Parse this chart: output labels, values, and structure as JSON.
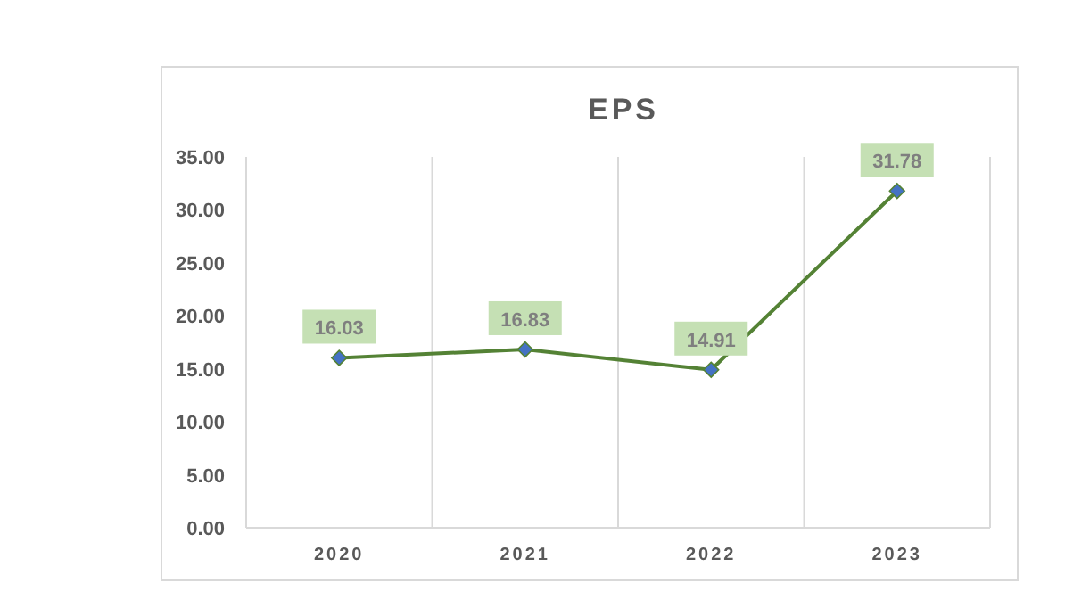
{
  "chart_data": {
    "type": "line",
    "title": "EPS",
    "categories": [
      "2020",
      "2021",
      "2022",
      "2023"
    ],
    "series": [
      {
        "color": "#548235",
        "values": [
          16.03,
          16.83,
          14.91,
          31.78
        ]
      }
    ],
    "ylim": [
      0,
      35
    ],
    "yticks": [
      {
        "value": 0,
        "label": "0.00"
      },
      {
        "value": 5,
        "label": "5.00"
      },
      {
        "value": 10,
        "label": "10.00"
      },
      {
        "value": 15,
        "label": "15.00"
      },
      {
        "value": 20,
        "label": "20.00"
      },
      {
        "value": 25,
        "label": "25.00"
      },
      {
        "value": 30,
        "label": "30.00"
      },
      {
        "value": 35,
        "label": "35.00"
      }
    ],
    "grid": "x",
    "marker": "diamond",
    "data_labels": true
  }
}
